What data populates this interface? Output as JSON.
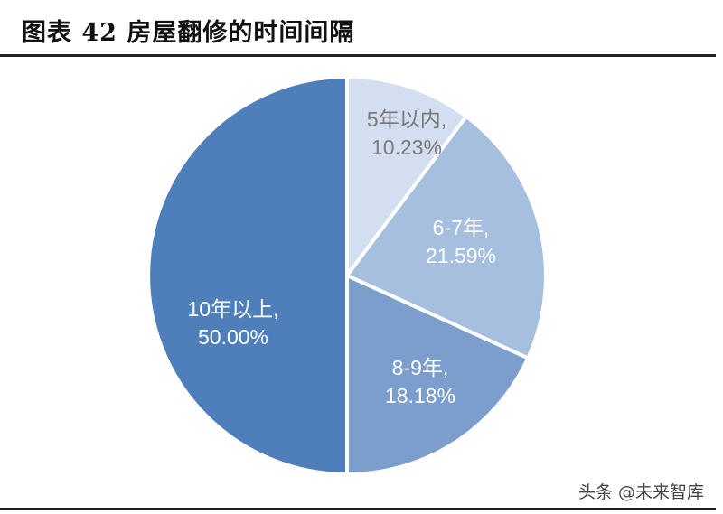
{
  "title": "图表 42  房屋翻修的时间间隔",
  "source": "头条 @未来智库",
  "chart_data": {
    "type": "pie",
    "title": "房屋翻修的时间间隔",
    "figure_number": "图表 42",
    "start_angle_deg": 0,
    "direction": "clockwise",
    "categories": [
      "5年以内",
      "6-7年",
      "8-9年",
      "10年以上"
    ],
    "values": [
      10.23,
      21.59,
      18.18,
      50.0
    ],
    "unit": "%",
    "colors": [
      "#d3dff0",
      "#a7bfde",
      "#7b9ecd",
      "#4f7fba"
    ],
    "label_colors": [
      "#7a7a7a",
      "#ffffff",
      "#ffffff",
      "#ffffff"
    ],
    "labels": [
      {
        "line1": "5年以内,",
        "line2": "10.23%"
      },
      {
        "line1": "6-7年,",
        "line2": "21.59%"
      },
      {
        "line1": "8-9年,",
        "line2": "18.18%"
      },
      {
        "line1": "10年以上,",
        "line2": "50.00%"
      }
    ],
    "legend": "none"
  }
}
